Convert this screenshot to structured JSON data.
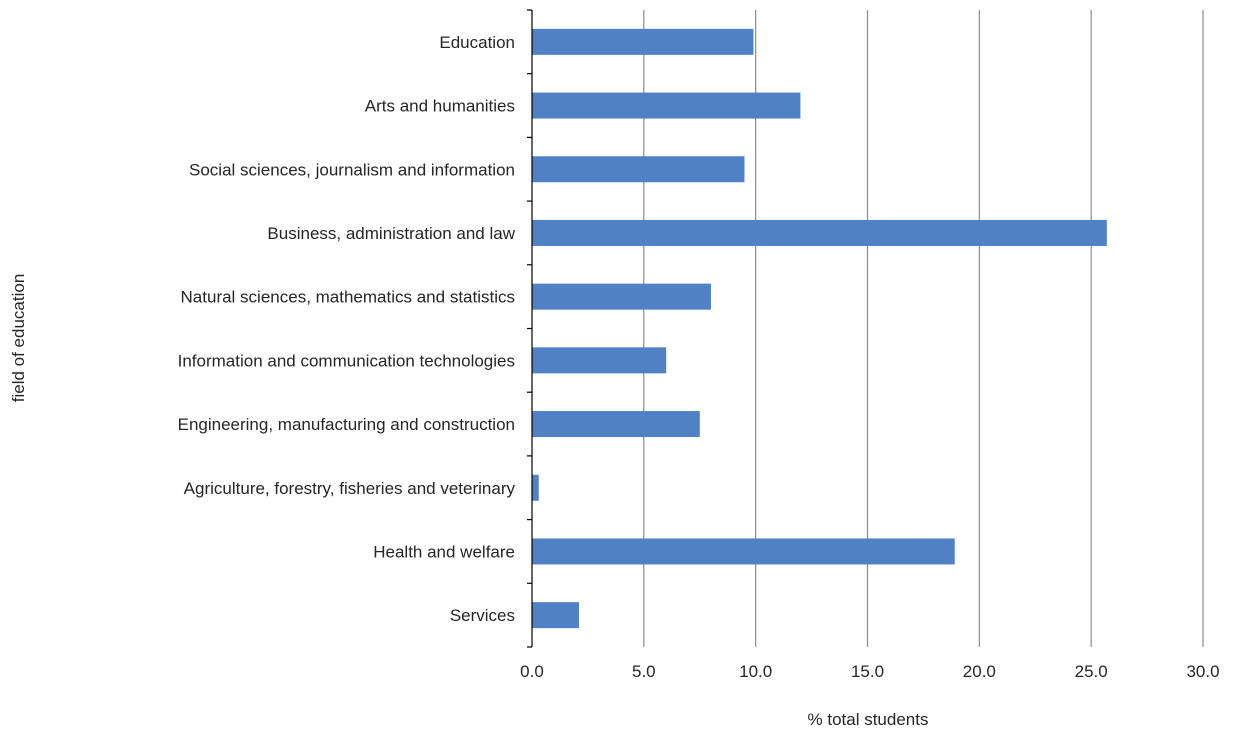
{
  "chart_data": {
    "type": "bar",
    "orientation": "horizontal",
    "categories": [
      "Education",
      "Arts and humanities",
      "Social sciences, journalism and information",
      "Business, administration and law",
      "Natural sciences, mathematics and statistics",
      "Information and communication technologies",
      "Engineering, manufacturing and construction",
      "Agriculture, forestry, fisheries and veterinary",
      "Health and welfare",
      "Services"
    ],
    "values": [
      9.9,
      12.0,
      9.5,
      25.7,
      8.0,
      6.0,
      7.5,
      0.3,
      18.9,
      2.1
    ],
    "xlabel": "% total students",
    "ylabel": "field of education",
    "xlim": [
      0,
      30
    ],
    "xticks": [
      "0.0",
      "5.0",
      "10.0",
      "15.0",
      "20.0",
      "25.0",
      "30.0"
    ],
    "grid": "vertical",
    "bar_color": "#4f81c4"
  }
}
